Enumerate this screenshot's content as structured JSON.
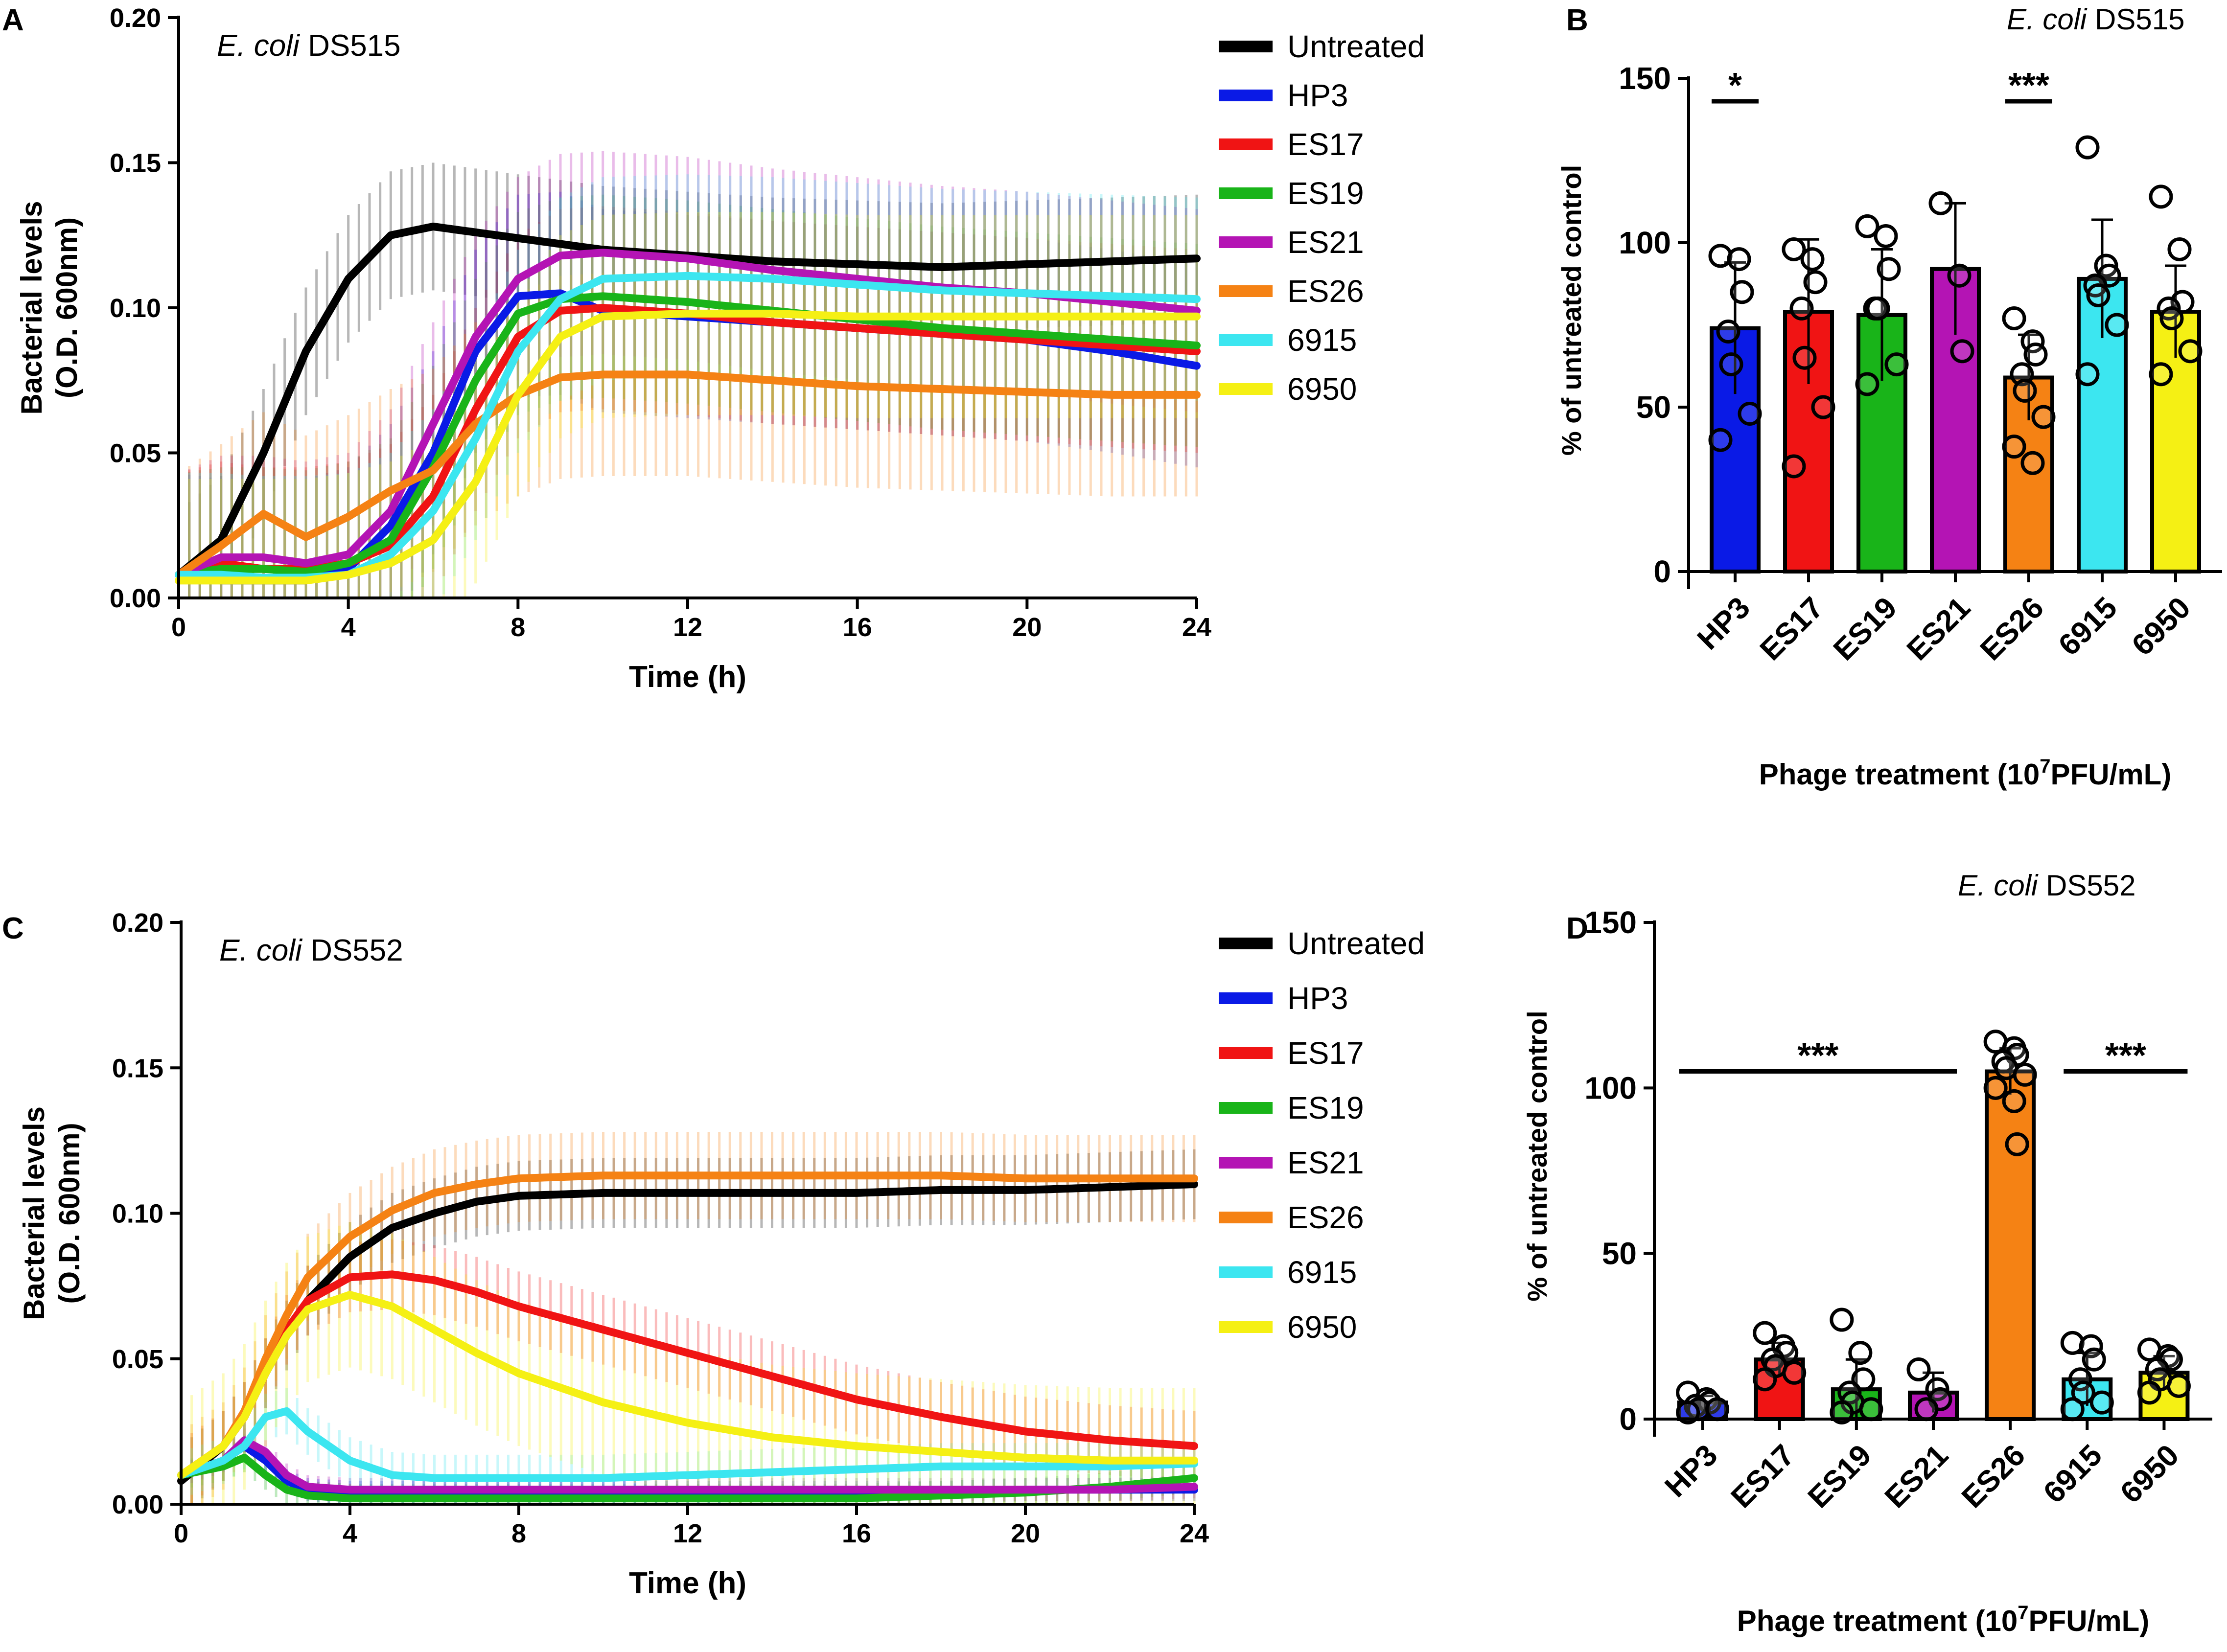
{
  "figure": {
    "series_colors": {
      "Untreated": "#000000",
      "HP3": "#0a1ae6",
      "ES17": "#f01414",
      "ES19": "#19b419",
      "ES21": "#b414b4",
      "ES26": "#f58214",
      "6915": "#3ce6f0",
      "6950": "#f5f014"
    }
  },
  "chart_data": [
    {
      "panel": "A",
      "type": "line",
      "strain_italic": "E. coli",
      "strain_id": "DS515",
      "xlabel": "Time (h)",
      "ylabel_line1": "Bacterial levels",
      "ylabel_line2": "(O.D. 600nm)",
      "xlim": [
        0,
        24
      ],
      "ylim": [
        0,
        0.2
      ],
      "xticks": [
        "0",
        "4",
        "8",
        "12",
        "16",
        "20",
        "24"
      ],
      "yticks": [
        "0.00",
        "0.05",
        "0.10",
        "0.15",
        "0.20"
      ],
      "x": [
        0,
        1,
        2,
        3,
        4,
        5,
        6,
        7,
        8,
        9,
        10,
        12,
        14,
        16,
        18,
        20,
        22,
        24
      ],
      "series": [
        {
          "name": "Untreated",
          "values": [
            0.008,
            0.02,
            0.05,
            0.085,
            0.11,
            0.125,
            0.128,
            0.126,
            0.124,
            0.122,
            0.12,
            0.118,
            0.116,
            0.115,
            0.114,
            0.115,
            0.116,
            0.117
          ],
          "err": 0.022
        },
        {
          "name": "HP3",
          "values": [
            0.008,
            0.006,
            0.006,
            0.006,
            0.01,
            0.025,
            0.05,
            0.085,
            0.104,
            0.105,
            0.099,
            0.097,
            0.095,
            0.093,
            0.091,
            0.089,
            0.085,
            0.08
          ],
          "err": 0.035
        },
        {
          "name": "ES17",
          "values": [
            0.008,
            0.012,
            0.01,
            0.01,
            0.012,
            0.018,
            0.035,
            0.065,
            0.09,
            0.099,
            0.1,
            0.098,
            0.095,
            0.093,
            0.091,
            0.089,
            0.087,
            0.085
          ],
          "err": 0.035
        },
        {
          "name": "ES19",
          "values": [
            0.008,
            0.01,
            0.01,
            0.009,
            0.012,
            0.02,
            0.045,
            0.075,
            0.098,
            0.103,
            0.104,
            0.102,
            0.099,
            0.096,
            0.093,
            0.091,
            0.089,
            0.087
          ],
          "err": 0.035
        },
        {
          "name": "ES21",
          "values": [
            0.008,
            0.014,
            0.014,
            0.012,
            0.015,
            0.03,
            0.06,
            0.09,
            0.11,
            0.118,
            0.119,
            0.117,
            0.113,
            0.11,
            0.107,
            0.105,
            0.102,
            0.099
          ],
          "err": 0.035
        },
        {
          "name": "ES26",
          "values": [
            0.008,
            0.018,
            0.029,
            0.021,
            0.028,
            0.037,
            0.044,
            0.06,
            0.07,
            0.076,
            0.077,
            0.077,
            0.075,
            0.073,
            0.072,
            0.071,
            0.07,
            0.07
          ],
          "err": 0.035
        },
        {
          "name": "6915",
          "values": [
            0.008,
            0.008,
            0.007,
            0.007,
            0.008,
            0.015,
            0.03,
            0.055,
            0.085,
            0.103,
            0.11,
            0.111,
            0.11,
            0.108,
            0.106,
            0.105,
            0.104,
            0.103
          ],
          "err": 0.035
        },
        {
          "name": "6950",
          "values": [
            0.006,
            0.006,
            0.006,
            0.006,
            0.008,
            0.012,
            0.02,
            0.04,
            0.07,
            0.09,
            0.097,
            0.098,
            0.098,
            0.097,
            0.097,
            0.097,
            0.097,
            0.097
          ],
          "err": 0.035
        }
      ],
      "legend": [
        "Untreated",
        "HP3",
        "ES17",
        "ES19",
        "ES21",
        "ES26",
        "6915",
        "6950"
      ]
    },
    {
      "panel": "B",
      "type": "bar",
      "strain_italic": "E. coli",
      "strain_id": "DS515",
      "xlabel_main": "Phage treatment (10",
      "xlabel_sup": "7",
      "xlabel_tail": "PFU/mL)",
      "ylabel": "% of untreated control",
      "ylim": [
        0,
        150
      ],
      "yticks": [
        "0",
        "50",
        "100",
        "150"
      ],
      "categories": [
        "HP3",
        "ES17",
        "ES19",
        "ES21",
        "ES26",
        "6915",
        "6950"
      ],
      "values": [
        74,
        79,
        78,
        92,
        59,
        89,
        79
      ],
      "sd": [
        20,
        22,
        20,
        20,
        13,
        18,
        14
      ],
      "points": [
        [
          96,
          95,
          85,
          73,
          63,
          48,
          40
        ],
        [
          98,
          95,
          88,
          80,
          65,
          50,
          32
        ],
        [
          105,
          102,
          92,
          80,
          80,
          63,
          57
        ],
        [
          112,
          90,
          67
        ],
        [
          77,
          70,
          66,
          60,
          55,
          47,
          38,
          33
        ],
        [
          129,
          93,
          90,
          87,
          84,
          75,
          60
        ],
        [
          114,
          98,
          82,
          80,
          77,
          67,
          60
        ]
      ],
      "significance": [
        {
          "label": "*",
          "from": "HP3",
          "to": "HP3",
          "y": 143
        },
        {
          "label": "***",
          "from": "ES26",
          "to": "ES26",
          "y": 143
        }
      ]
    },
    {
      "panel": "C",
      "type": "line",
      "strain_italic": "E. coli",
      "strain_id": "DS552",
      "xlabel": "Time (h)",
      "ylabel_line1": "Bacterial levels",
      "ylabel_line2": "(O.D. 600nm)",
      "xlim": [
        0,
        24
      ],
      "ylim": [
        0,
        0.2
      ],
      "xticks": [
        "0",
        "4",
        "8",
        "12",
        "16",
        "20",
        "24"
      ],
      "yticks": [
        "0.00",
        "0.05",
        "0.10",
        "0.15",
        "0.20"
      ],
      "x": [
        0,
        1,
        1.5,
        2,
        2.5,
        3,
        4,
        5,
        6,
        7,
        8,
        10,
        12,
        14,
        16,
        18,
        20,
        22,
        24
      ],
      "series": [
        {
          "name": "Untreated",
          "values": [
            0.008,
            0.02,
            0.03,
            0.045,
            0.058,
            0.07,
            0.085,
            0.095,
            0.1,
            0.104,
            0.106,
            0.107,
            0.107,
            0.107,
            0.107,
            0.108,
            0.108,
            0.109,
            0.11
          ],
          "err": 0.012
        },
        {
          "name": "HP3",
          "values": [
            0.01,
            0.015,
            0.02,
            0.015,
            0.008,
            0.005,
            0.004,
            0.004,
            0.004,
            0.004,
            0.004,
            0.004,
            0.004,
            0.004,
            0.004,
            0.004,
            0.005,
            0.005,
            0.005
          ],
          "err": 0.004
        },
        {
          "name": "ES17",
          "values": [
            0.01,
            0.02,
            0.03,
            0.045,
            0.06,
            0.07,
            0.078,
            0.079,
            0.077,
            0.073,
            0.068,
            0.06,
            0.052,
            0.044,
            0.036,
            0.03,
            0.025,
            0.022,
            0.02
          ],
          "err": 0.012
        },
        {
          "name": "ES19",
          "values": [
            0.01,
            0.013,
            0.016,
            0.01,
            0.005,
            0.003,
            0.002,
            0.002,
            0.002,
            0.002,
            0.002,
            0.002,
            0.002,
            0.002,
            0.002,
            0.003,
            0.004,
            0.006,
            0.009
          ],
          "err": 0.005
        },
        {
          "name": "ES21",
          "values": [
            0.01,
            0.015,
            0.022,
            0.018,
            0.01,
            0.006,
            0.005,
            0.005,
            0.005,
            0.005,
            0.005,
            0.005,
            0.005,
            0.005,
            0.005,
            0.005,
            0.005,
            0.005,
            0.006
          ],
          "err": 0.004
        },
        {
          "name": "ES26",
          "values": [
            0.01,
            0.02,
            0.032,
            0.05,
            0.065,
            0.078,
            0.092,
            0.101,
            0.107,
            0.11,
            0.112,
            0.113,
            0.113,
            0.113,
            0.113,
            0.113,
            0.112,
            0.112,
            0.112
          ],
          "err": 0.015
        },
        {
          "name": "6915",
          "values": [
            0.01,
            0.015,
            0.02,
            0.03,
            0.032,
            0.025,
            0.015,
            0.01,
            0.009,
            0.009,
            0.009,
            0.009,
            0.01,
            0.011,
            0.012,
            0.013,
            0.013,
            0.013,
            0.014
          ],
          "err": 0.008
        },
        {
          "name": "6950",
          "values": [
            0.01,
            0.02,
            0.03,
            0.045,
            0.058,
            0.067,
            0.072,
            0.068,
            0.06,
            0.052,
            0.045,
            0.035,
            0.028,
            0.023,
            0.02,
            0.018,
            0.016,
            0.015,
            0.015
          ],
          "err": 0.025
        }
      ],
      "legend": [
        "Untreated",
        "HP3",
        "ES17",
        "ES19",
        "ES21",
        "ES26",
        "6915",
        "6950"
      ]
    },
    {
      "panel": "D",
      "type": "bar",
      "strain_italic": "E. coli",
      "strain_id": "DS552",
      "xlabel_main": "Phage treatment (10",
      "xlabel_sup": "7",
      "xlabel_tail": "PFU/mL)",
      "ylabel": "% of untreated control",
      "ylim": [
        0,
        150
      ],
      "yticks": [
        "0",
        "50",
        "100",
        "150"
      ],
      "categories": [
        "HP3",
        "ES17",
        "ES19",
        "ES21",
        "ES26",
        "6915",
        "6950"
      ],
      "values": [
        5,
        18,
        9,
        8,
        105,
        12,
        14
      ],
      "sd": [
        2,
        5,
        9,
        6,
        7,
        8,
        5
      ],
      "points": [
        [
          8,
          6,
          5,
          4,
          3,
          3,
          2
        ],
        [
          26,
          22,
          20,
          18,
          16,
          14,
          12
        ],
        [
          30,
          20,
          12,
          8,
          5,
          3,
          2
        ],
        [
          15,
          9,
          6,
          3
        ],
        [
          114,
          112,
          110,
          108,
          106,
          104,
          100,
          96,
          83
        ],
        [
          23,
          22,
          18,
          12,
          8,
          5,
          3
        ],
        [
          21,
          19,
          18,
          15,
          12,
          10,
          8
        ]
      ],
      "significance": [
        {
          "label": "***",
          "from": "HP3",
          "to": "ES21",
          "y": 105
        },
        {
          "label": "***",
          "from": "6915",
          "to": "6950",
          "y": 105
        }
      ]
    }
  ],
  "panel_letters": [
    "A",
    "B",
    "C",
    "D"
  ]
}
